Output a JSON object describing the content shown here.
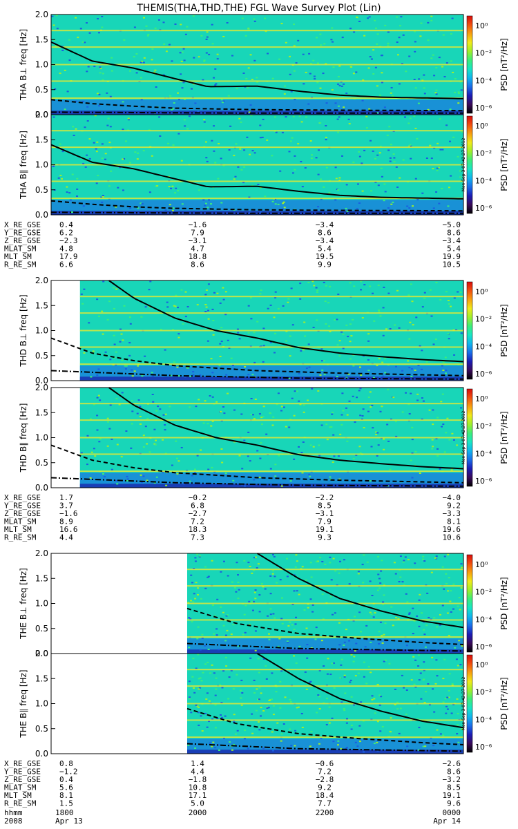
{
  "title": "THEMIS(THA,THD,THE) FGL Wave Survey Plot (Lin)",
  "colorbar": {
    "label": "PSD [nT²/Hz]",
    "ticks": [
      "10⁰",
      "10⁻²",
      "10⁻⁴",
      "10⁻⁶"
    ],
    "colors": [
      "#000000",
      "#3a0a5a",
      "#1c1cb4",
      "#1a6de8",
      "#10b5ee",
      "#18e6c4",
      "#3ced7a",
      "#9eef2c",
      "#f0ea1a",
      "#f7a010",
      "#f05010",
      "#d80c0c"
    ]
  },
  "stamp": "Mon Sep  3 07:42:27 2012",
  "time_axis": {
    "labels": [
      {
        "hhmm": "1800",
        "date": "Apr 13"
      },
      {
        "hhmm": "2000",
        "date": ""
      },
      {
        "hhmm": "2200",
        "date": ""
      },
      {
        "hhmm": "0000",
        "date": "Apr 14"
      }
    ],
    "row_labels": [
      "hhmm",
      "2008"
    ]
  },
  "chart_data": [
    {
      "type": "heatmap",
      "title": "THEMIS(THA,THD,THE) FGL Wave Survey Plot (Lin)",
      "ylabel": "THA B⊥   freq [Hz]",
      "ylim": [
        0,
        2
      ],
      "yticks": [
        "0.0",
        "0.5",
        "1.0",
        "1.5",
        "2.0"
      ],
      "xlim": [
        "1800",
        "0000"
      ],
      "data_start": 0.0,
      "series": [
        {
          "style": "solid",
          "x": [
            0,
            0.1,
            0.2,
            0.3,
            0.38,
            0.5,
            0.6,
            0.7,
            0.8,
            1.0
          ],
          "y": [
            1.45,
            1.07,
            0.93,
            0.72,
            0.56,
            0.57,
            0.47,
            0.39,
            0.35,
            0.32
          ]
        },
        {
          "style": "dashed",
          "x": [
            0,
            0.1,
            0.2,
            0.3,
            0.5,
            0.7,
            1.0
          ],
          "y": [
            0.3,
            0.22,
            0.17,
            0.13,
            0.1,
            0.09,
            0.08
          ]
        },
        {
          "style": "dashdot",
          "x": [
            0,
            0.5,
            1.0
          ],
          "y": [
            0.05,
            0.03,
            0.03
          ]
        }
      ]
    },
    {
      "type": "heatmap",
      "ylabel": "THA B∥   freq [Hz]",
      "ylim": [
        0,
        2
      ],
      "yticks": [
        "0.0",
        "0.5",
        "1.0",
        "1.5",
        "2.0"
      ],
      "xlim": [
        "1800",
        "0000"
      ],
      "data_start": 0.0,
      "series": [
        {
          "style": "solid",
          "x": [
            0,
            0.1,
            0.2,
            0.3,
            0.38,
            0.5,
            0.6,
            0.7,
            0.8,
            1.0
          ],
          "y": [
            1.4,
            1.05,
            0.92,
            0.72,
            0.56,
            0.57,
            0.47,
            0.39,
            0.35,
            0.32
          ]
        },
        {
          "style": "dashed",
          "x": [
            0,
            0.1,
            0.2,
            0.3,
            0.5,
            0.7,
            1.0
          ],
          "y": [
            0.28,
            0.21,
            0.16,
            0.13,
            0.1,
            0.09,
            0.08
          ]
        },
        {
          "style": "dashdot",
          "x": [
            0,
            0.5,
            1.0
          ],
          "y": [
            0.05,
            0.03,
            0.03
          ]
        }
      ]
    },
    {
      "type": "heatmap",
      "ylabel": "THD B⊥   freq [Hz]",
      "ylim": [
        0,
        2
      ],
      "yticks": [
        "0.0",
        "0.5",
        "1.0",
        "1.5",
        "2.0"
      ],
      "xlim": [
        "1800",
        "0000"
      ],
      "data_start": 0.07,
      "series": [
        {
          "style": "solid",
          "x": [
            0.14,
            0.2,
            0.3,
            0.4,
            0.5,
            0.6,
            0.7,
            0.8,
            0.9,
            1.0
          ],
          "y": [
            2.0,
            1.65,
            1.25,
            1.0,
            0.85,
            0.66,
            0.55,
            0.48,
            0.42,
            0.38
          ]
        },
        {
          "style": "dashed",
          "x": [
            0,
            0.1,
            0.2,
            0.3,
            0.5,
            0.7,
            1.0
          ],
          "y": [
            0.85,
            0.55,
            0.4,
            0.3,
            0.2,
            0.15,
            0.1
          ]
        },
        {
          "style": "dashdot",
          "x": [
            0,
            0.3,
            0.6,
            1.0
          ],
          "y": [
            0.2,
            0.1,
            0.05,
            0.03
          ]
        }
      ]
    },
    {
      "type": "heatmap",
      "ylabel": "THD B∥   freq [Hz]",
      "ylim": [
        0,
        2
      ],
      "yticks": [
        "0.0",
        "0.5",
        "1.0",
        "1.5",
        "2.0"
      ],
      "xlim": [
        "1800",
        "0000"
      ],
      "data_start": 0.07,
      "series": [
        {
          "style": "solid",
          "x": [
            0.14,
            0.2,
            0.3,
            0.4,
            0.5,
            0.6,
            0.7,
            0.8,
            0.9,
            1.0
          ],
          "y": [
            2.0,
            1.65,
            1.25,
            1.0,
            0.85,
            0.66,
            0.55,
            0.48,
            0.42,
            0.38
          ]
        },
        {
          "style": "dashed",
          "x": [
            0,
            0.1,
            0.2,
            0.3,
            0.5,
            0.7,
            1.0
          ],
          "y": [
            0.85,
            0.55,
            0.4,
            0.3,
            0.2,
            0.15,
            0.1
          ]
        },
        {
          "style": "dashdot",
          "x": [
            0,
            0.3,
            0.6,
            1.0
          ],
          "y": [
            0.2,
            0.1,
            0.05,
            0.03
          ]
        }
      ]
    },
    {
      "type": "heatmap",
      "ylabel": "THE B⊥   freq [Hz]",
      "ylim": [
        0,
        2
      ],
      "yticks": [
        "0.0",
        "0.5",
        "1.0",
        "1.5",
        "2.0"
      ],
      "xlim": [
        "1800",
        "0000"
      ],
      "data_start": 0.33,
      "series": [
        {
          "style": "solid",
          "x": [
            0.5,
            0.6,
            0.7,
            0.8,
            0.9,
            1.0
          ],
          "y": [
            2.0,
            1.5,
            1.1,
            0.85,
            0.65,
            0.52
          ]
        },
        {
          "style": "dashed",
          "x": [
            0.33,
            0.45,
            0.6,
            0.75,
            0.9,
            1.0
          ],
          "y": [
            0.9,
            0.6,
            0.4,
            0.3,
            0.22,
            0.18
          ]
        },
        {
          "style": "dashdot",
          "x": [
            0.33,
            0.6,
            1.0
          ],
          "y": [
            0.2,
            0.1,
            0.05
          ]
        }
      ]
    },
    {
      "type": "heatmap",
      "ylabel": "THE B∥   freq [Hz]",
      "ylim": [
        0,
        2
      ],
      "yticks": [
        "0.0",
        "0.5",
        "1.0",
        "1.5",
        "2.0"
      ],
      "xlim": [
        "1800",
        "0000"
      ],
      "data_start": 0.33,
      "series": [
        {
          "style": "solid",
          "x": [
            0.5,
            0.6,
            0.7,
            0.8,
            0.9,
            1.0
          ],
          "y": [
            2.0,
            1.5,
            1.1,
            0.85,
            0.65,
            0.52
          ]
        },
        {
          "style": "dashed",
          "x": [
            0.33,
            0.45,
            0.6,
            0.75,
            0.9,
            1.0
          ],
          "y": [
            0.9,
            0.6,
            0.4,
            0.3,
            0.22,
            0.18
          ]
        },
        {
          "style": "dashdot",
          "x": [
            0.33,
            0.6,
            1.0
          ],
          "y": [
            0.2,
            0.1,
            0.05
          ]
        }
      ]
    }
  ],
  "orbit_tables": [
    {
      "rows": [
        {
          "label": "X_RE_GSE",
          "values": [
            "0.4",
            "−1.6",
            "−3.4",
            "−5.0"
          ]
        },
        {
          "label": "Y_RE_GSE",
          "values": [
            "6.2",
            "7.9",
            "8.6",
            "8.6"
          ]
        },
        {
          "label": "Z_RE_GSE",
          "values": [
            "−2.3",
            "−3.1",
            "−3.4",
            "−3.4"
          ]
        },
        {
          "label": "MLAT_SM",
          "values": [
            "4.8",
            "4.7",
            "5.4",
            "5.4"
          ]
        },
        {
          "label": "MLT_SM",
          "values": [
            "17.9",
            "18.8",
            "19.5",
            "19.9"
          ]
        },
        {
          "label": "R_RE_SM",
          "values": [
            "6.6",
            "8.6",
            "9.9",
            "10.5"
          ]
        }
      ]
    },
    {
      "rows": [
        {
          "label": "X_RE_GSE",
          "values": [
            "1.7",
            "−0.2",
            "−2.2",
            "−4.0"
          ]
        },
        {
          "label": "Y_RE_GSE",
          "values": [
            "3.7",
            "6.8",
            "8.5",
            "9.2"
          ]
        },
        {
          "label": "Z_RE_GSE",
          "values": [
            "−1.6",
            "−2.7",
            "−3.1",
            "−3.3"
          ]
        },
        {
          "label": "MLAT_SM",
          "values": [
            "8.9",
            "7.2",
            "7.9",
            "8.1"
          ]
        },
        {
          "label": "MLT_SM",
          "values": [
            "16.6",
            "18.3",
            "19.1",
            "19.6"
          ]
        },
        {
          "label": "R_RE_SM",
          "values": [
            "4.4",
            "7.3",
            "9.3",
            "10.6"
          ]
        }
      ]
    },
    {
      "rows": [
        {
          "label": "X_RE_GSE",
          "values": [
            "0.8",
            "1.4",
            "−0.6",
            "−2.6"
          ]
        },
        {
          "label": "Y_RE_GSE",
          "values": [
            "−1.2",
            "4.4",
            "7.2",
            "8.6"
          ]
        },
        {
          "label": "Z_RE_GSE",
          "values": [
            "0.4",
            "−1.8",
            "−2.8",
            "−3.2"
          ]
        },
        {
          "label": "MLAT_SM",
          "values": [
            "5.6",
            "10.8",
            "9.2",
            "8.5"
          ]
        },
        {
          "label": "MLT_SM",
          "values": [
            "8.1",
            "17.1",
            "18.4",
            "19.1"
          ]
        },
        {
          "label": "R_RE_SM",
          "values": [
            "1.5",
            "5.0",
            "7.7",
            "9.6"
          ]
        }
      ]
    }
  ]
}
